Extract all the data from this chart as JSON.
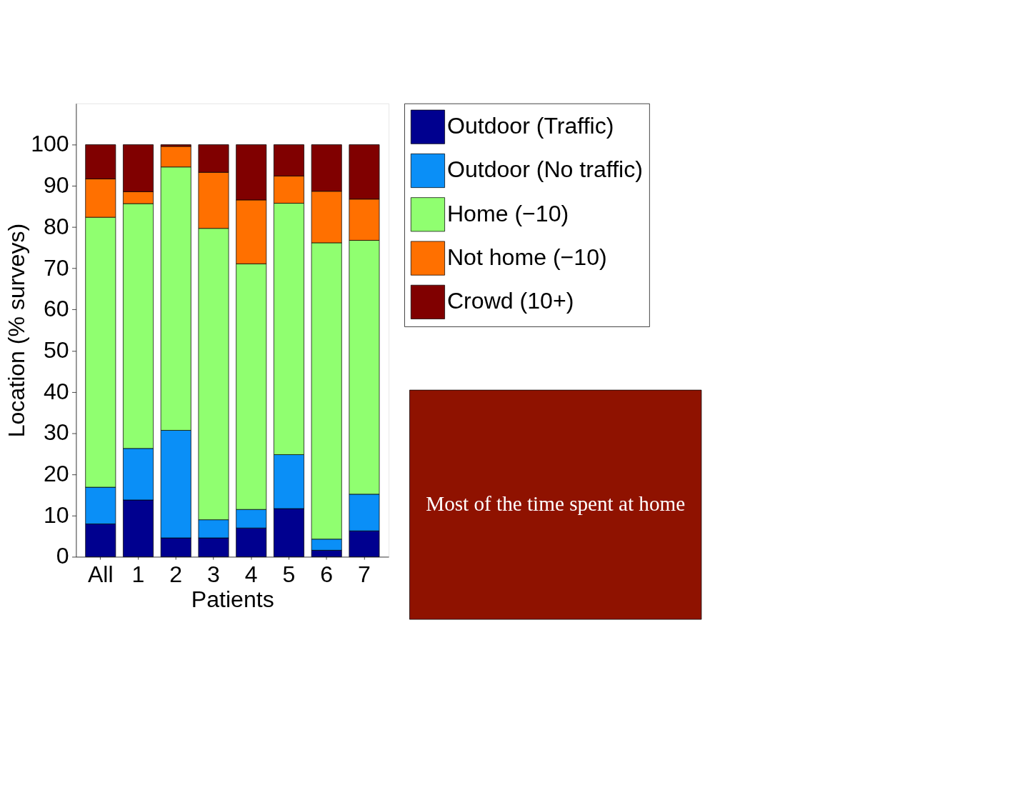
{
  "chart_data": {
    "type": "bar",
    "stacked": true,
    "xlabel": "Patients",
    "ylabel": "Location (% surveys)",
    "categories": [
      "All",
      "1",
      "2",
      "3",
      "4",
      "5",
      "6",
      "7"
    ],
    "series": [
      {
        "name": "Outdoor (Traffic)",
        "color": "#00008f",
        "values": [
          8.0,
          13.8,
          4.6,
          4.6,
          7.0,
          11.7,
          1.6,
          6.3
        ]
      },
      {
        "name": "Outdoor (No traffic)",
        "color": "#0a8ff7",
        "values": [
          8.9,
          12.5,
          26.1,
          4.4,
          4.5,
          13.1,
          2.7,
          8.9
        ]
      },
      {
        "name": "Home (−10)",
        "color": "#90ff70",
        "values": [
          65.5,
          59.4,
          63.9,
          70.7,
          59.6,
          61.0,
          71.9,
          61.6
        ]
      },
      {
        "name": "Not home (−10)",
        "color": "#ff7000",
        "values": [
          9.3,
          2.9,
          5.0,
          13.6,
          15.5,
          6.6,
          12.5,
          10.0
        ]
      },
      {
        "name": "Crowd (10+)",
        "color": "#800000",
        "values": [
          8.3,
          11.4,
          0.4,
          6.7,
          13.4,
          7.6,
          11.3,
          13.2
        ]
      }
    ],
    "ylim": [
      0,
      110
    ],
    "yticks": [
      0,
      10,
      20,
      30,
      40,
      50,
      60,
      70,
      80,
      90,
      100
    ],
    "grid": false,
    "legend": "top right",
    "annotations": [
      "Most of the time spent at home"
    ]
  }
}
